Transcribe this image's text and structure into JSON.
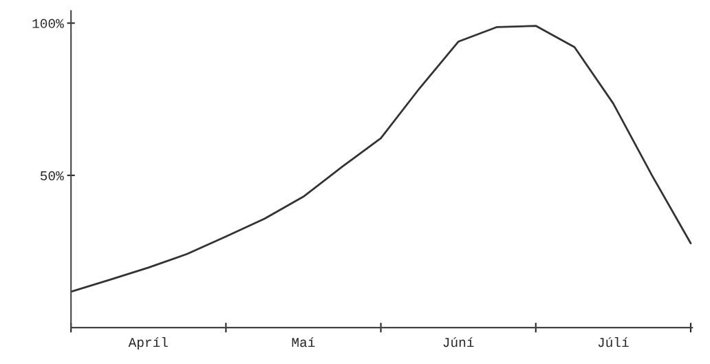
{
  "chart_data": {
    "type": "line",
    "categories": [
      null,
      null,
      "Apríl",
      null,
      null,
      null,
      "Maí",
      null,
      null,
      null,
      "Júní",
      null,
      null,
      null,
      "Júlí",
      null,
      null
    ],
    "series": [
      {
        "color": "#333333",
        "values": [
          11.8,
          15.7,
          19.7,
          24.2,
          29.9,
          35.8,
          43,
          52.8,
          62.2,
          78.6,
          93.9,
          98.7,
          99.1,
          92.1,
          73.6,
          50,
          27.7
        ]
      }
    ],
    "ylim": [
      0,
      104
    ],
    "yticks": [
      {
        "value": 50,
        "label": "50%"
      },
      {
        "value": 100,
        "label": "100%"
      }
    ],
    "grid": false,
    "marker": "none",
    "line_style": "solid"
  }
}
